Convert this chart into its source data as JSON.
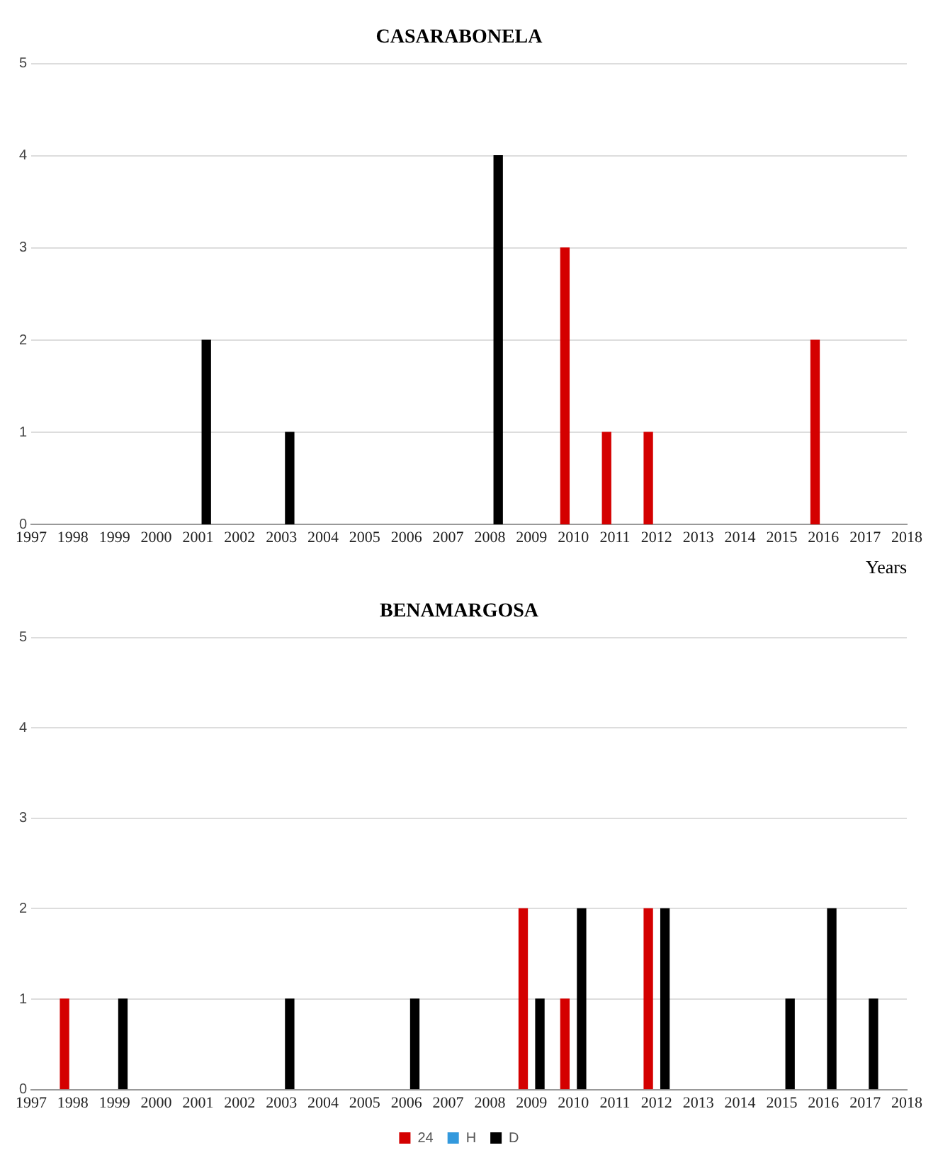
{
  "chart_data": [
    {
      "type": "bar",
      "title": "CASARABONELA",
      "xlabel": "Years",
      "xlim": [
        1997,
        2018
      ],
      "xticks": [
        1997,
        1998,
        1999,
        2000,
        2001,
        2002,
        2003,
        2004,
        2005,
        2006,
        2007,
        2008,
        2009,
        2010,
        2011,
        2012,
        2013,
        2014,
        2015,
        2016,
        2017,
        2018
      ],
      "ylim": [
        0,
        5
      ],
      "yticks": [
        0,
        1,
        2,
        3,
        4,
        5
      ],
      "grid": "y",
      "legend": false,
      "series": [
        {
          "color": "#d40000",
          "x": [
            2009.8,
            2010.8,
            2011.8,
            2015.8
          ],
          "values": [
            3,
            1,
            1,
            2
          ]
        },
        {
          "color": "#000000",
          "x": [
            2001.2,
            2003.2,
            2008.2
          ],
          "values": [
            2,
            1,
            4
          ]
        }
      ]
    },
    {
      "type": "bar",
      "title": "BENAMARGOSA",
      "xlim": [
        1997,
        2018
      ],
      "xticks": [
        1997,
        1998,
        1999,
        2000,
        2001,
        2002,
        2003,
        2004,
        2005,
        2006,
        2007,
        2008,
        2009,
        2010,
        2011,
        2012,
        2013,
        2014,
        2015,
        2016,
        2017,
        2018
      ],
      "ylim": [
        0,
        5
      ],
      "yticks": [
        0,
        1,
        2,
        3,
        4,
        5
      ],
      "grid": "y",
      "legend": "bottom",
      "series": [
        {
          "name": "24",
          "color": "#d40000",
          "x": [
            1997.8,
            2008.8,
            2009.8,
            2011.8
          ],
          "values": [
            1,
            2,
            1,
            2
          ]
        },
        {
          "name": "H",
          "color": "#3399dd"
        },
        {
          "name": "D",
          "color": "#000000",
          "x": [
            1999.2,
            2003.2,
            2006.2,
            2009.2,
            2010.2,
            2012.2,
            2015.2,
            2016.2,
            2017.2
          ],
          "values": [
            1,
            1,
            1,
            1,
            2,
            2,
            1,
            2,
            1
          ]
        }
      ]
    }
  ]
}
